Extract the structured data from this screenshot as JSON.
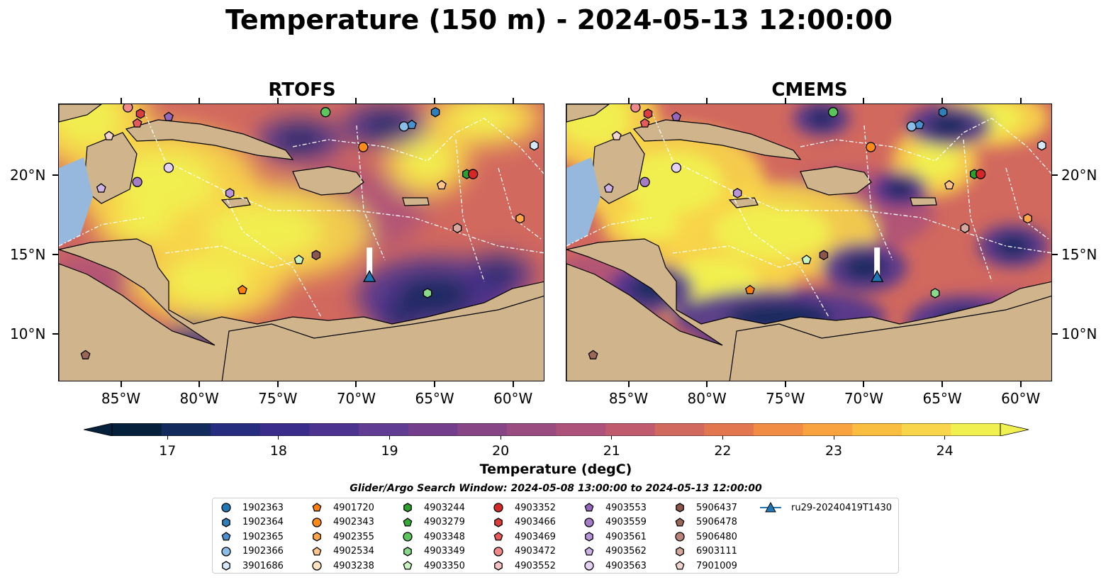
{
  "title": "Temperature (150 m) - 2024-05-13 12:00:00",
  "panels": [
    {
      "id": "rtofs",
      "title": "RTOFS"
    },
    {
      "id": "cmems",
      "title": "CMEMS"
    }
  ],
  "map_extent": {
    "lon": [
      -89.0,
      -58.0
    ],
    "lat": [
      7.0,
      24.5
    ]
  },
  "lon_ticks": [
    "85°W",
    "80°W",
    "75°W",
    "70°W",
    "65°W",
    "60°W"
  ],
  "lat_ticks": [
    "20°N",
    "15°N",
    "10°N"
  ],
  "colorbar": {
    "label": "Temperature (degC)",
    "ticks": [
      "17",
      "18",
      "19",
      "20",
      "21",
      "22",
      "23",
      "24"
    ],
    "range": [
      16.5,
      24.5
    ],
    "extend": "both",
    "colors": [
      "#04203a",
      "#122a5c",
      "#262c7e",
      "#3a2c8a",
      "#4d3390",
      "#603c92",
      "#733e8c",
      "#874585",
      "#9a4c80",
      "#ad527a",
      "#c05b6f",
      "#d2695f",
      "#e2774f",
      "#f08c43",
      "#f8a240",
      "#f9bd3f",
      "#f8d54a",
      "#f0f050"
    ]
  },
  "colors": {
    "land": "#d0b48c",
    "shallow": "#97b8dd"
  },
  "window_label": "Glider/Argo Search Window: 2024-05-08 13:00:00 to 2024-05-13 12:00:00",
  "legend": [
    {
      "id": "1902363",
      "marker": "circle",
      "color": "#1f77b4"
    },
    {
      "id": "1902364",
      "marker": "hexagon",
      "color": "#2f7fbd"
    },
    {
      "id": "1902365",
      "marker": "pentagon",
      "color": "#4a8fd0"
    },
    {
      "id": "1902366",
      "marker": "circle",
      "color": "#8bbde6"
    },
    {
      "id": "3901686",
      "marker": "hexagon",
      "color": "#d6e9f8"
    },
    {
      "id": "4901720",
      "marker": "pentagon",
      "color": "#ff7f0e"
    },
    {
      "id": "4902343",
      "marker": "circle",
      "color": "#ff8c1a"
    },
    {
      "id": "4902355",
      "marker": "hexagon",
      "color": "#ffa54a"
    },
    {
      "id": "4902534",
      "marker": "pentagon",
      "color": "#ffc488"
    },
    {
      "id": "4903238",
      "marker": "circle",
      "color": "#ffe2c2"
    },
    {
      "id": "4903244",
      "marker": "hexagon",
      "color": "#2ca02c"
    },
    {
      "id": "4903279",
      "marker": "pentagon",
      "color": "#35aa35"
    },
    {
      "id": "4903348",
      "marker": "circle",
      "color": "#5cc45c"
    },
    {
      "id": "4903349",
      "marker": "hexagon",
      "color": "#8ad98a"
    },
    {
      "id": "4903350",
      "marker": "pentagon",
      "color": "#c8f5c0"
    },
    {
      "id": "4903352",
      "marker": "circle",
      "color": "#d62728"
    },
    {
      "id": "4903466",
      "marker": "hexagon",
      "color": "#dd3c3c"
    },
    {
      "id": "4903469",
      "marker": "pentagon",
      "color": "#e65a5a"
    },
    {
      "id": "4903472",
      "marker": "circle",
      "color": "#f08a8a"
    },
    {
      "id": "4903552",
      "marker": "hexagon",
      "color": "#f7c2c2"
    },
    {
      "id": "4903553",
      "marker": "pentagon",
      "color": "#9467bd"
    },
    {
      "id": "4903559",
      "marker": "circle",
      "color": "#a57cc8"
    },
    {
      "id": "4903561",
      "marker": "hexagon",
      "color": "#b895d8"
    },
    {
      "id": "4903562",
      "marker": "pentagon",
      "color": "#cdb2e6"
    },
    {
      "id": "4903563",
      "marker": "circle",
      "color": "#e3d2f2"
    },
    {
      "id": "5906437",
      "marker": "hexagon",
      "color": "#8c564b"
    },
    {
      "id": "5906478",
      "marker": "pentagon",
      "color": "#9c6658"
    },
    {
      "id": "5906480",
      "marker": "circle",
      "color": "#b9857a"
    },
    {
      "id": "6903111",
      "marker": "hexagon",
      "color": "#d4a89d"
    },
    {
      "id": "7901009",
      "marker": "pentagon",
      "color": "#f2d6ce"
    },
    {
      "id": "ru29-20240419T1430",
      "marker": "triangle-line",
      "color": "#1f77b4"
    }
  ],
  "floats": [
    {
      "id": "4903472",
      "lon": -84.6,
      "lat": 24.3
    },
    {
      "id": "4903466",
      "lon": -83.8,
      "lat": 23.9
    },
    {
      "id": "4903553",
      "lon": -82.0,
      "lat": 23.7
    },
    {
      "id": "4903469",
      "lon": -84.0,
      "lat": 23.3
    },
    {
      "id": "4903348",
      "lon": -72.0,
      "lat": 24.0
    },
    {
      "id": "1902364",
      "lon": -65.0,
      "lat": 24.0
    },
    {
      "id": "1902366",
      "lon": -67.0,
      "lat": 23.1
    },
    {
      "id": "1902365",
      "lon": -66.5,
      "lat": 23.2
    },
    {
      "id": "7901009",
      "lon": -85.8,
      "lat": 22.5
    },
    {
      "id": "4902343",
      "lon": -69.6,
      "lat": 21.8
    },
    {
      "id": "3901686",
      "lon": -58.7,
      "lat": 21.9
    },
    {
      "id": "4903563",
      "lon": -82.0,
      "lat": 20.5
    },
    {
      "id": "4903559",
      "lon": -84.0,
      "lat": 19.6
    },
    {
      "id": "4903562",
      "lon": -86.3,
      "lat": 19.2
    },
    {
      "id": "4903561",
      "lon": -78.1,
      "lat": 18.9
    },
    {
      "id": "4903244",
      "lon": -63.0,
      "lat": 20.1
    },
    {
      "id": "4903352",
      "lon": -62.6,
      "lat": 20.1
    },
    {
      "id": "4902534",
      "lon": -64.6,
      "lat": 19.4
    },
    {
      "id": "4902355",
      "lon": -59.6,
      "lat": 17.3
    },
    {
      "id": "6903111",
      "lon": -63.6,
      "lat": 16.7
    },
    {
      "id": "5906437",
      "lon": -72.6,
      "lat": 15.0
    },
    {
      "id": "4903350",
      "lon": -73.7,
      "lat": 14.7
    },
    {
      "id": "4901720",
      "lon": -77.3,
      "lat": 12.8
    },
    {
      "id": "4903349",
      "lon": -65.5,
      "lat": 12.6
    },
    {
      "id": "5906478",
      "lon": -87.3,
      "lat": 8.7
    }
  ],
  "glider": {
    "id": "ru29-20240419T1430",
    "lon": -69.2,
    "lat": 13.6
  }
}
